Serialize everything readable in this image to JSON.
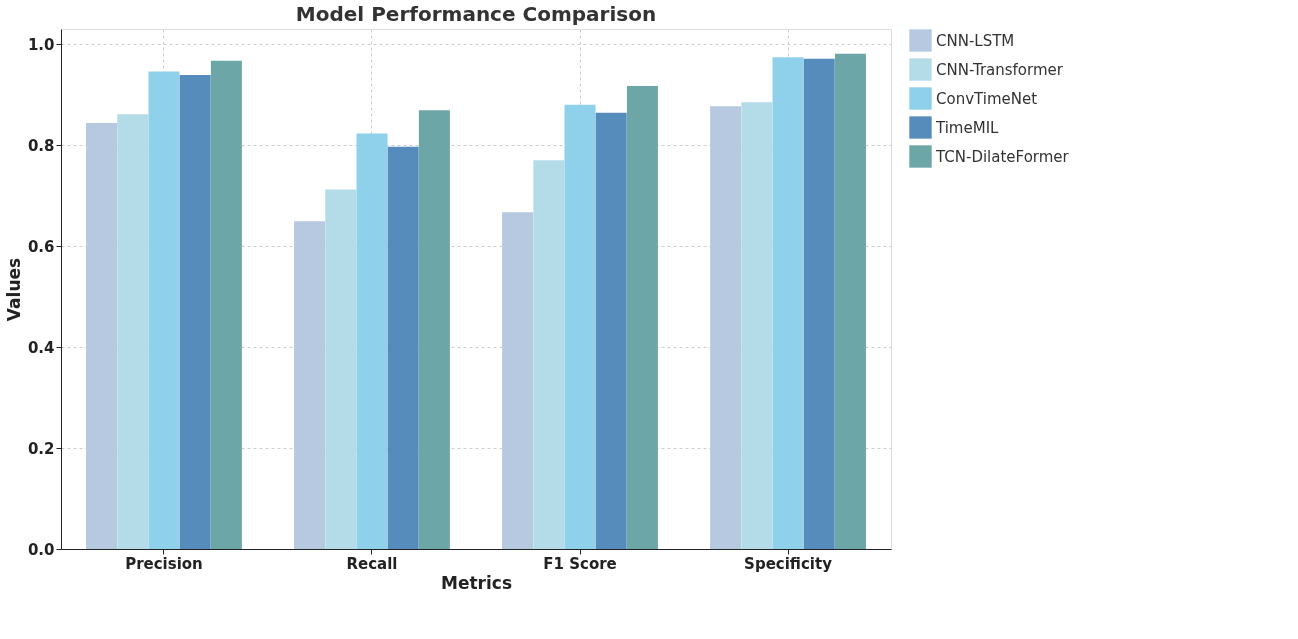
{
  "chart_data": {
    "type": "bar",
    "title": "Model Performance Comparison",
    "xlabel": "Metrics",
    "ylabel": "Values",
    "categories": [
      "Precision",
      "Recall",
      "F1 Score",
      "Specificity"
    ],
    "series": [
      {
        "name": "CNN-LSTM",
        "color": "#b6c9e1",
        "values": [
          0.844,
          0.649,
          0.667,
          0.877
        ]
      },
      {
        "name": "CNN-Transformer",
        "color": "#b4dbe8",
        "values": [
          0.861,
          0.712,
          0.77,
          0.885
        ]
      },
      {
        "name": "ConvTimeNet",
        "color": "#8fd0ea",
        "values": [
          0.946,
          0.823,
          0.88,
          0.974
        ]
      },
      {
        "name": "TimeMIL",
        "color": "#568cbb",
        "values": [
          0.939,
          0.797,
          0.864,
          0.971
        ]
      },
      {
        "name": "TCN-DilateFormer",
        "color": "#6ca6a7",
        "values": [
          0.967,
          0.869,
          0.917,
          0.981
        ]
      }
    ],
    "ylim": [
      0,
      1.03
    ],
    "yticks": [
      {
        "value": 0,
        "label": "0.0"
      },
      0.2,
      0.4,
      0.6,
      0.8,
      {
        "value": 1,
        "label": "1.0"
      }
    ],
    "grid": true,
    "legend": "right"
  }
}
